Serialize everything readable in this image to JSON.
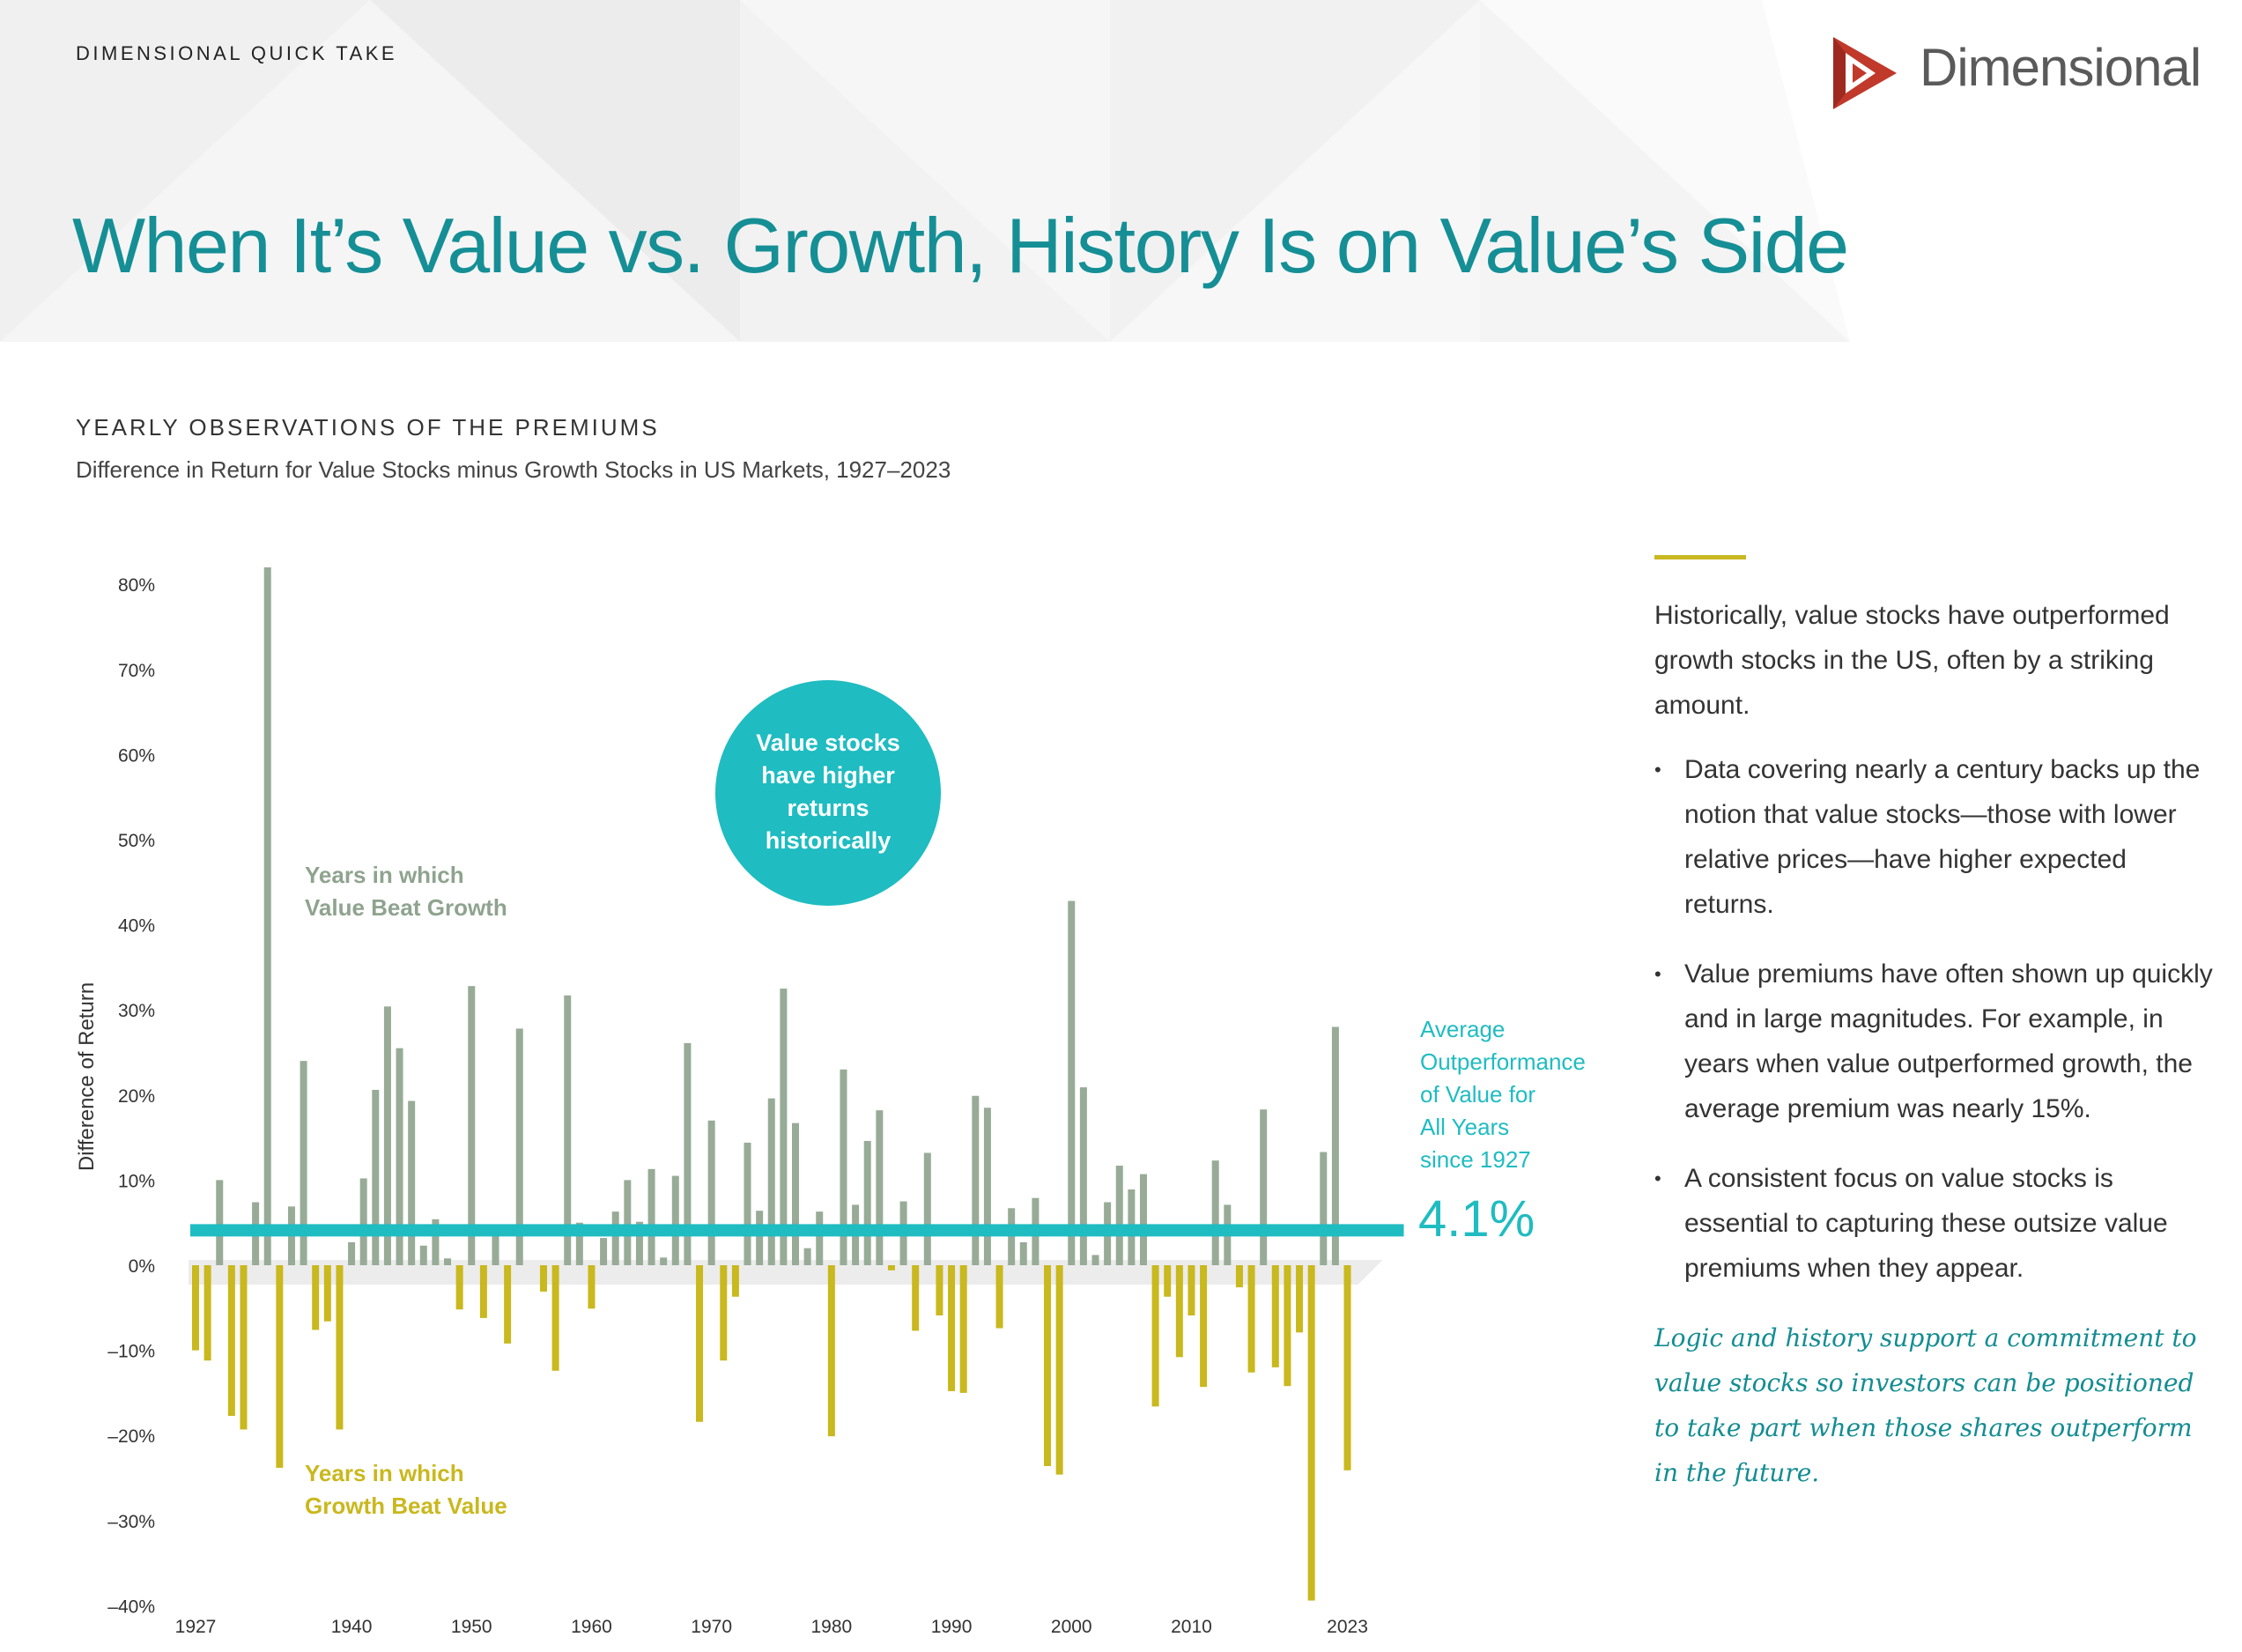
{
  "header": {
    "kicker": "DIMENSIONAL QUICK TAKE",
    "brand": "Dimensional",
    "headline": "When It’s Value vs. Growth, History Is on Value’s Side"
  },
  "section": {
    "title": "YEARLY OBSERVATIONS OF THE PREMIUMS",
    "subtitle": "Difference in Return for Value Stocks minus Growth Stocks in US Markets, 1927–2023"
  },
  "colors": {
    "teal": "#158f95",
    "value_bar": "#97ab97",
    "growth_bar": "#c9b81e",
    "average_line": "#1fbcc1",
    "logo_red": "#c0392b"
  },
  "chart_data": {
    "type": "bar",
    "ylabel": "Difference of Return",
    "ylim": [
      -40,
      82
    ],
    "yticks": [
      80,
      70,
      60,
      50,
      40,
      30,
      20,
      10,
      0,
      -10,
      -20,
      -30,
      -40
    ],
    "ytick_labels": [
      "80%",
      "70%",
      "60%",
      "50%",
      "40%",
      "30%",
      "20%",
      "10%",
      "0%",
      "–10%",
      "–20%",
      "–30%",
      "–40%"
    ],
    "xtick_labels": [
      {
        "year": 1927,
        "label": "1927"
      },
      {
        "year": 1940,
        "label": "1940"
      },
      {
        "year": 1950,
        "label": "1950"
      },
      {
        "year": 1960,
        "label": "1960"
      },
      {
        "year": 1970,
        "label": "1970"
      },
      {
        "year": 1980,
        "label": "1980"
      },
      {
        "year": 1990,
        "label": "1990"
      },
      {
        "year": 2000,
        "label": "2000"
      },
      {
        "year": 2010,
        "label": "2010"
      },
      {
        "year": 2023,
        "label": "2023"
      }
    ],
    "start_year": 1927,
    "values": [
      -10,
      -11.2,
      10,
      -17.7,
      -19.3,
      7.4,
      82,
      -23.8,
      6.9,
      24,
      -7.6,
      -6.6,
      -19.3,
      2.7,
      10.2,
      20.6,
      30.4,
      25.5,
      19.3,
      2.3,
      5.4,
      0.8,
      -5.2,
      32.8,
      -6.2,
      3.7,
      -9.2,
      27.8,
      0,
      -3.1,
      -12.4,
      31.7,
      5,
      -5.1,
      3.2,
      6.3,
      10,
      5.1,
      11.3,
      0.9,
      10.5,
      26.1,
      -18.4,
      17,
      -11.2,
      -3.7,
      14.4,
      6.4,
      19.6,
      32.5,
      16.7,
      2,
      6.3,
      -20.1,
      23,
      7.1,
      14.6,
      18.2,
      -0.6,
      7.5,
      -7.7,
      13.2,
      -5.9,
      -14.8,
      -15,
      19.9,
      18.5,
      -7.4,
      6.7,
      2.7,
      7.9,
      -23.6,
      -24.6,
      42.8,
      20.9,
      1.2,
      7.4,
      11.7,
      8.9,
      10.7,
      -16.6,
      -3.7,
      -10.8,
      -5.9,
      -14.3,
      12.3,
      7.1,
      -2.6,
      -12.6,
      18.3,
      -12,
      -14.2,
      -7.9,
      -39.4,
      13.3,
      28,
      -24.1
    ],
    "average": 4.1,
    "average_label": "4.1%",
    "average_caption": [
      "Average",
      "Outperformance",
      "of Value for",
      "All Years",
      "since 1927"
    ],
    "annotations": {
      "value_beat": [
        "Years in which",
        "Value Beat Growth"
      ],
      "growth_beat": [
        "Years in which",
        "Growth Beat Value"
      ],
      "bubble": [
        "Value stocks",
        "have higher",
        "returns",
        "historically"
      ]
    }
  },
  "sidebar": {
    "lead": "Historically, value stocks have outperformed growth stocks in the US, often by a striking amount.",
    "bullet_glyph": "•",
    "bullets": [
      "Data covering nearly a century backs up the notion that value stocks—those with lower relative prices—have higher expected returns.",
      "Value premiums have often shown up quickly and in large magnitudes. For example, in years when value outperformed growth, the average premium was nearly 15%.",
      "A consistent focus on value stocks is essential to capturing these outsize value premiums when they appear."
    ],
    "quote": "Logic and history support a commitment to value stocks so investors can be positioned to take part when those shares outperform in the future."
  }
}
